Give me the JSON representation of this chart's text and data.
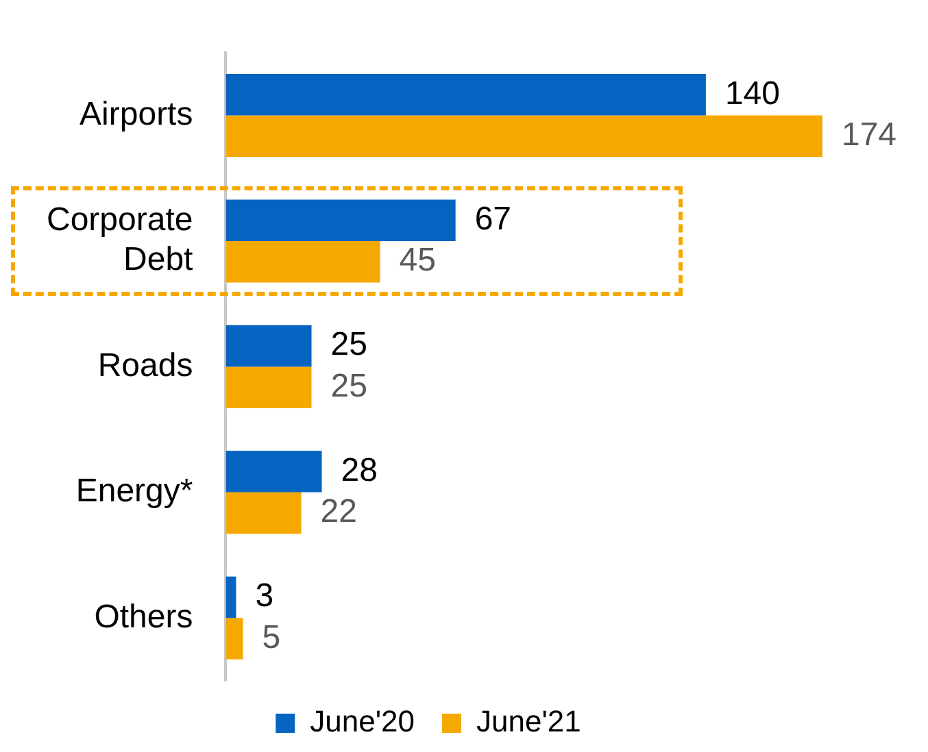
{
  "chart_data": {
    "type": "bar",
    "orientation": "horizontal",
    "categories": [
      "Airports",
      "Corporate\nDebt",
      "Roads",
      "Energy*",
      "Others"
    ],
    "series": [
      {
        "name": "June'20",
        "color": "#0563c1",
        "values": [
          140,
          67,
          25,
          28,
          3
        ]
      },
      {
        "name": "June'21",
        "color": "#f5a800",
        "values": [
          174,
          45,
          25,
          22,
          5
        ]
      }
    ],
    "data_labels": true,
    "legend": "bottom"
  }
}
